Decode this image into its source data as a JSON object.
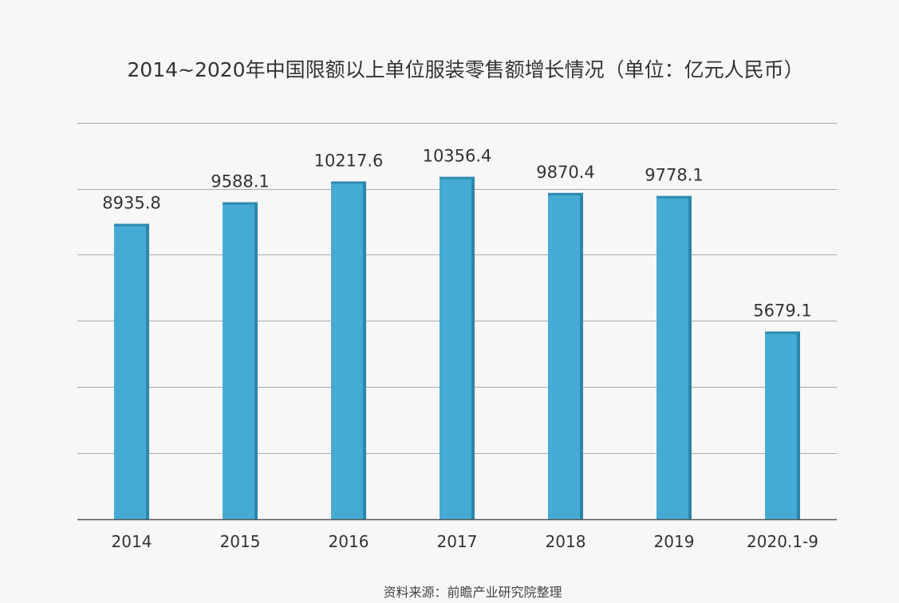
{
  "chart_data": {
    "type": "bar",
    "title": "2014~2020年中国限额以上单位服装零售额增长情况（单位：亿元人民币）",
    "categories": [
      "2014",
      "2015",
      "2016",
      "2017",
      "2018",
      "2019",
      "2020.1-9"
    ],
    "series": [
      {
        "values": [
          8935.8,
          9588.1,
          10217.6,
          10356.4,
          9870.4,
          9778.1,
          5679.1
        ],
        "labels": [
          "8935.8",
          "9588.1",
          "10217.6",
          "10356.4",
          "9870.4",
          "9778.1",
          "5679.1"
        ]
      }
    ],
    "xlabel": "",
    "ylabel": "",
    "ylim": [
      0,
      12000
    ],
    "grid": true,
    "legend": "none",
    "colors": {
      "bar_front": "#45abd4",
      "bar_side": "#2c86ab",
      "bar_top": "#2f8ab0",
      "gridline": "#a9a9a9",
      "axis": "#555555",
      "text": "#333333"
    }
  },
  "source": "资料来源：前瞻产业研究院整理"
}
